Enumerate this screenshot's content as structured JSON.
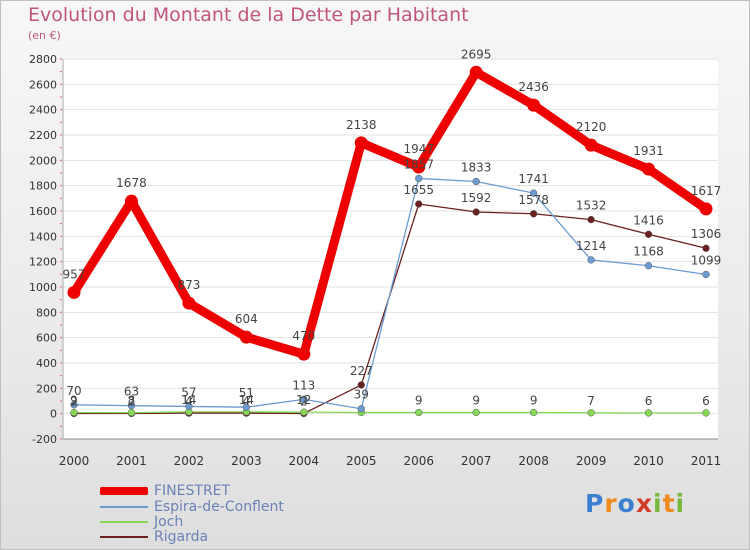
{
  "chart_data": {
    "type": "line",
    "title": "Evolution du Montant de la Dette par Habitant",
    "subtitle": "(en €)",
    "xlabel": "",
    "ylabel": "",
    "categories": [
      "2000",
      "2001",
      "2002",
      "2003",
      "2004",
      "2005",
      "2006",
      "2007",
      "2008",
      "2009",
      "2010",
      "2011"
    ],
    "ylim": [
      -200,
      2800
    ],
    "yticks": [
      -200,
      0,
      200,
      400,
      600,
      800,
      1000,
      1200,
      1400,
      1600,
      1800,
      2000,
      2200,
      2400,
      2600,
      2800
    ],
    "grid": true,
    "series": [
      {
        "name": "FINESTRET",
        "color": "#ee0000",
        "values": [
          957,
          1678,
          873,
          604,
          470,
          2138,
          1947,
          2695,
          2436,
          2120,
          1931,
          1617
        ],
        "labels": [
          "957",
          "1678",
          "873",
          "604",
          "470",
          "2138",
          "1947",
          "2695",
          "2436",
          "2120",
          "1931",
          "1617"
        ]
      },
      {
        "name": "Espira-de-Conflent",
        "color": "#6b9bd1",
        "values": [
          70,
          63,
          57,
          51,
          113,
          39,
          1857,
          1833,
          1741,
          1214,
          1168,
          1099
        ],
        "labels": [
          "70",
          "63",
          "57",
          "51",
          "113",
          "39",
          "1857",
          "1833",
          "1741",
          "1214",
          "1168",
          "1099"
        ]
      },
      {
        "name": "Joch",
        "color": "#88d858",
        "values": [
          9,
          8,
          14,
          14,
          12,
          9,
          9,
          9,
          9,
          7,
          6,
          6
        ],
        "labels": [
          "9",
          "8",
          "14",
          "14",
          "12",
          "",
          "9",
          "9",
          "9",
          "7",
          "6",
          "6"
        ]
      },
      {
        "name": "Rigarda",
        "color": "#6b2020",
        "values": [
          2,
          2,
          4,
          4,
          2,
          227,
          1655,
          1592,
          1578,
          1532,
          1416,
          1306
        ],
        "labels": [
          "2",
          "2",
          "4",
          "4",
          "2",
          "227",
          "1655",
          "1592",
          "1578",
          "1532",
          "1416",
          "1306"
        ]
      }
    ]
  },
  "logo": {
    "text": "Proxiti",
    "letters": [
      "P",
      "r",
      "o",
      "x",
      "i",
      "t",
      "i"
    ],
    "letter_colors": [
      "#3c7fd0",
      "#f08a1c",
      "#3c7fd0",
      "#d23c2a",
      "#79b83c",
      "#f08a1c",
      "#79b83c"
    ]
  }
}
